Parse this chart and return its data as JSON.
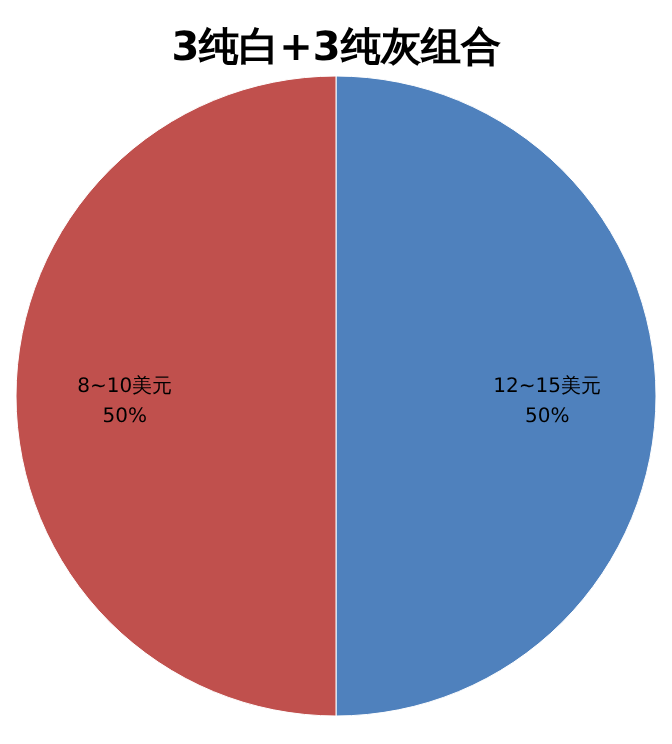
{
  "chart_data": {
    "type": "pie",
    "title": "3纯白+3纯灰组合",
    "categories": [
      "12~15美元",
      "8~10美元"
    ],
    "values": [
      50,
      50
    ],
    "colors": [
      "#4f81bd",
      "#c0504d"
    ],
    "value_labels": [
      "50%",
      "50%"
    ]
  }
}
